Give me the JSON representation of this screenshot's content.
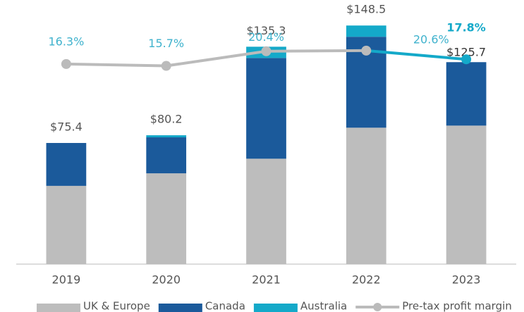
{
  "chart_data": {
    "type": "stacked-bar-line",
    "categories": [
      "2019",
      "2020",
      "2021",
      "2022",
      "2023"
    ],
    "series": [
      {
        "name": "UK & Europe",
        "color": "#bdbdbd",
        "values": [
          48.7,
          56.5,
          65.6,
          84.9,
          86.2
        ]
      },
      {
        "name": "Canada",
        "color": "#1b5a9b",
        "values": [
          26.7,
          22.4,
          62.7,
          56.6,
          39.5
        ]
      },
      {
        "name": "Australia",
        "color": "#14a9c9",
        "values": [
          0,
          1.3,
          7.0,
          7.0,
          0
        ]
      },
      {
        "name": "Pre-tax profit margin",
        "color": "#bbbbbb",
        "highlight_color": "#14a9c9",
        "axis": "y2",
        "values": [
          16.3,
          15.7,
          20.4,
          20.6,
          17.8
        ],
        "value_labels": [
          "16.3%",
          "15.7%",
          "20.4%",
          "20.6%",
          "17.8%"
        ]
      }
    ],
    "totals": {
      "values": [
        75.4,
        80.2,
        135.3,
        148.5,
        125.7
      ],
      "value_labels": [
        "$75.4",
        "$80.2",
        "$135.3",
        "$148.5",
        "$125.7"
      ]
    },
    "ylim": [
      0,
      160
    ],
    "y2lim": [
      -48,
      34.6
    ]
  }
}
